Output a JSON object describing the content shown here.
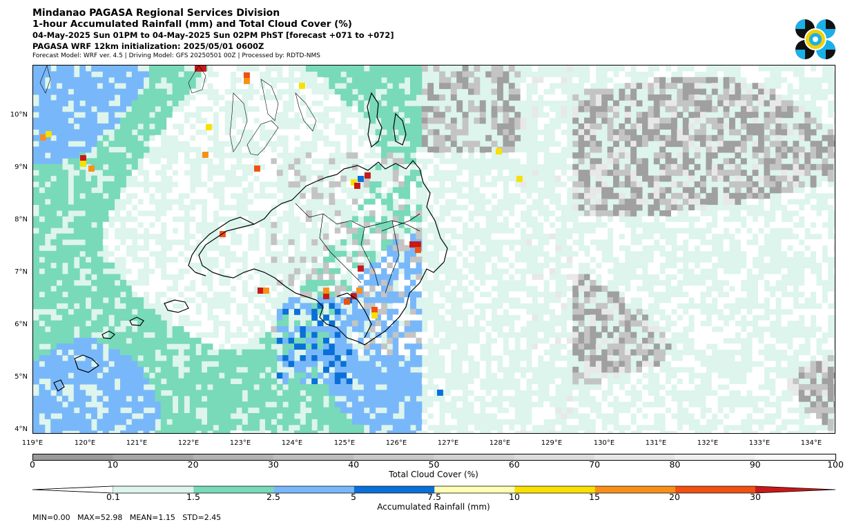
{
  "header": {
    "title": "Mindanao PAGASA Regional Services Division",
    "subtitle": "1-hour Accumulated Rainfall (mm) and Total Cloud Cover (%)",
    "period": "04-May-2025 Sun 01PM to 04-May-2025 Sun 02PM PhST [forecast +071 to +072]",
    "init": "PAGASA WRF 12km initialization: 2025/05/01 0600Z",
    "model_info": "Forecast Model: WRF ver. 4.5 | Driving Model: GFS 20250501 00Z | Processed by: RDTD-NMS"
  },
  "map": {
    "lat_labels": [
      "10°N",
      "9°N",
      "8°N",
      "7°N",
      "6°N",
      "5°N",
      "4°N"
    ],
    "lon_labels": [
      "119°E",
      "120°E",
      "121°E",
      "122°E",
      "123°E",
      "124°E",
      "125°E",
      "126°E",
      "127°E",
      "128°E",
      "129°E",
      "130°E",
      "131°E",
      "132°E",
      "133°E",
      "134°E"
    ],
    "colors": {
      "ocean_base": "#ddf5ec",
      "rain_1_5": "#78dab8",
      "rain_2_5": "#78b8fa",
      "rain_5": "#0a70d8",
      "rain_7_5": "#ffffb4",
      "rain_10": "#f8e000",
      "rain_15": "#f89018",
      "rain_20": "#f05010",
      "rain_30": "#c81818",
      "cloud_light": "#e8e8e8",
      "cloud_mid": "#c4c4c4",
      "cloud_dark": "#a0a0a0",
      "coastline": "#000000"
    }
  },
  "cloud_bar": {
    "label": "Total Cloud Cover (%)",
    "ticks": [
      "0",
      "10",
      "20",
      "30",
      "40",
      "50",
      "60",
      "70",
      "80",
      "90",
      "100"
    ],
    "colors": [
      "#9a9a9a",
      "#a6a6a6",
      "#b2b2b2",
      "#bdbdbd",
      "#c8c8c8",
      "#d2d2d2",
      "#dcdcdc",
      "#e6e6e6",
      "#efefef",
      "#f8f8f8"
    ]
  },
  "rain_bar": {
    "label": "Accumulated Rainfall (mm)",
    "ticks": [
      "0.1",
      "1.5",
      "2.5",
      "5",
      "7.5",
      "10",
      "15",
      "20",
      "30"
    ],
    "colors": [
      "#ddf5ec",
      "#78dab8",
      "#78b8fa",
      "#0a70d8",
      "#ffffb4",
      "#f8e000",
      "#f89018",
      "#f05010",
      "#c81818"
    ]
  },
  "stats": {
    "text": "MIN=0.00   MAX=52.98   MEAN=1.15   STD=2.45"
  }
}
